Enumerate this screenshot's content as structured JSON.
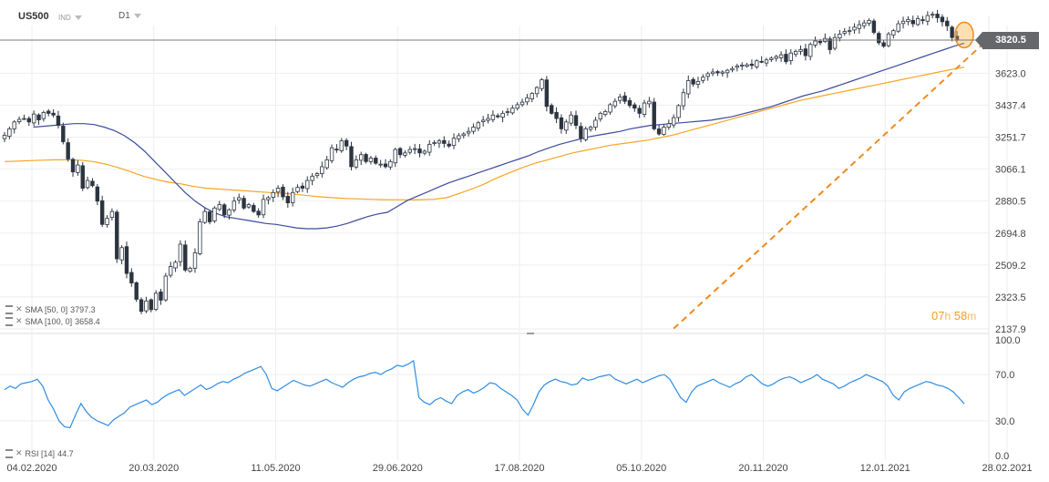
{
  "header": {
    "symbol": "US500",
    "type_badge": "IND",
    "timeframe": "D1"
  },
  "colors": {
    "candle_up": "#ffffff",
    "candle_down": "#2c3440",
    "sma50": "#3e4b9c",
    "sma100": "#f5a623",
    "trend": "#f08a1c",
    "rsi": "#2f8de4",
    "price_line": "#7a7a7a",
    "axis_text": "#444444",
    "grid": "#eeeeee"
  },
  "chart_data": [
    {
      "type": "candlestick",
      "title": "US500",
      "timeframe": "D1",
      "x_tick_labels": [
        "04.02.2020",
        "20.03.2020",
        "11.05.2020",
        "29.06.2020",
        "17.08.2020",
        "05.10.2020",
        "20.11.2020",
        "12.01.2021",
        "28.02.2021"
      ],
      "y_tick_labels": [
        "3623.0",
        "3437.4",
        "3251.7",
        "3066.1",
        "2880.5",
        "2694.8",
        "2509.2",
        "2323.5",
        "2137.9"
      ],
      "ylim": [
        2137.9,
        3900
      ],
      "current_price": "3820.5",
      "close_series": [
        3263,
        3300,
        3340,
        3355,
        3360,
        3340,
        3386,
        3352,
        3395,
        3390,
        3380,
        3320,
        3225,
        3125,
        3050,
        3090,
        2955,
        3000,
        2970,
        2880,
        2745,
        2780,
        2820,
        2545,
        2610,
        2460,
        2405,
        2310,
        2240,
        2300,
        2250,
        2345,
        2305,
        2445,
        2500,
        2525,
        2630,
        2480,
        2490,
        2580,
        2760,
        2820,
        2760,
        2840,
        2860,
        2800,
        2830,
        2880,
        2900,
        2840,
        2860,
        2820,
        2800,
        2890,
        2900,
        2930,
        2955,
        2905,
        2870,
        2930,
        2960,
        2955,
        3000,
        3025,
        3040,
        3080,
        3120,
        3190,
        3180,
        3230,
        3200,
        3080,
        3120,
        3150,
        3110,
        3130,
        3100,
        3095,
        3080,
        3110,
        3180,
        3150,
        3160,
        3180,
        3185,
        3160,
        3170,
        3210,
        3220,
        3230,
        3215,
        3200,
        3245,
        3260,
        3270,
        3285,
        3310,
        3335,
        3350,
        3360,
        3380,
        3370,
        3390,
        3400,
        3420,
        3440,
        3455,
        3480,
        3505,
        3540,
        3585,
        3430,
        3390,
        3360,
        3300,
        3340,
        3380,
        3320,
        3245,
        3300,
        3310,
        3350,
        3390,
        3400,
        3440,
        3460,
        3485,
        3460,
        3435,
        3420,
        3390,
        3450,
        3460,
        3300,
        3270,
        3310,
        3330,
        3365,
        3435,
        3510,
        3580,
        3560,
        3575,
        3600,
        3620,
        3630,
        3625,
        3630,
        3640,
        3650,
        3665,
        3670,
        3672,
        3668,
        3695,
        3690,
        3700,
        3710,
        3720,
        3730,
        3690,
        3740,
        3750,
        3760,
        3725,
        3790,
        3810,
        3800,
        3825,
        3760,
        3830,
        3850,
        3865,
        3870,
        3890,
        3905,
        3915,
        3930,
        3860,
        3800,
        3780,
        3851,
        3870,
        3910,
        3925,
        3935,
        3910,
        3940,
        3930,
        3958,
        3965,
        3945,
        3922,
        3898,
        3830,
        3820
      ],
      "series": [
        {
          "name": "SMA [50, 0]",
          "value": "3797.3",
          "values": [
            3310,
            3315,
            3320,
            3325,
            3330,
            3330,
            3325,
            3310,
            3290,
            3260,
            3220,
            3170,
            3110,
            3050,
            2990,
            2930,
            2880,
            2840,
            2810,
            2790,
            2780,
            2770,
            2760,
            2750,
            2745,
            2735,
            2725,
            2720,
            2720,
            2725,
            2735,
            2750,
            2770,
            2790,
            2805,
            2815,
            2850,
            2885,
            2910,
            2935,
            2960,
            2985,
            3005,
            3025,
            3045,
            3065,
            3085,
            3105,
            3125,
            3145,
            3170,
            3190,
            3210,
            3225,
            3240,
            3255,
            3265,
            3275,
            3285,
            3300,
            3310,
            3320,
            3325,
            3330,
            3335,
            3340,
            3345,
            3350,
            3360,
            3370,
            3385,
            3400,
            3415,
            3430,
            3450,
            3470,
            3490,
            3505,
            3520,
            3540,
            3560,
            3580,
            3600,
            3620,
            3640,
            3660,
            3680,
            3700,
            3720,
            3740,
            3760,
            3780,
            3797.3
          ]
        },
        {
          "name": "SMA [100, 0]",
          "value": "3658.4",
          "values": [
            3110,
            3112,
            3115,
            3118,
            3120,
            3120,
            3118,
            3110,
            3095,
            3075,
            3050,
            3025,
            3005,
            2990,
            2980,
            2965,
            2955,
            2950,
            2945,
            2940,
            2935,
            2930,
            2926,
            2920,
            2912,
            2905,
            2900,
            2895,
            2893,
            2891,
            2889,
            2888,
            2887,
            2889,
            2891,
            2900,
            2925,
            2950,
            2980,
            3015,
            3045,
            3075,
            3100,
            3120,
            3140,
            3160,
            3175,
            3190,
            3205,
            3215,
            3225,
            3235,
            3250,
            3265,
            3285,
            3305,
            3325,
            3345,
            3365,
            3385,
            3405,
            3425,
            3445,
            3465,
            3480,
            3495,
            3510,
            3525,
            3540,
            3555,
            3570,
            3585,
            3600,
            3615,
            3630,
            3645,
            3658.4
          ]
        },
        {
          "name": "RSI [14]",
          "value": "44.7",
          "ylim": [
            0,
            100
          ],
          "y_tick_labels": [
            "100.0",
            "70.0",
            "30.0",
            "0.0"
          ],
          "values": [
            57,
            60,
            58,
            62,
            63,
            64,
            66,
            60,
            48,
            40,
            30,
            25,
            24,
            35,
            45,
            38,
            33,
            30,
            28,
            26,
            31,
            34,
            37,
            42,
            44,
            46,
            48,
            44,
            46,
            50,
            53,
            55,
            57,
            52,
            55,
            58,
            61,
            57,
            59,
            62,
            64,
            63,
            66,
            68,
            71,
            73,
            75,
            77,
            70,
            58,
            56,
            59,
            62,
            65,
            63,
            61,
            60,
            62,
            64,
            66,
            63,
            61,
            59,
            63,
            66,
            68,
            69,
            71,
            72,
            70,
            73,
            75,
            78,
            77,
            79,
            82,
            50,
            46,
            44,
            48,
            50,
            47,
            45,
            52,
            55,
            57,
            54,
            56,
            59,
            63,
            62,
            58,
            55,
            52,
            48,
            40,
            35,
            44,
            55,
            61,
            64,
            66,
            64,
            63,
            61,
            62,
            67,
            65,
            66,
            68,
            69,
            70,
            66,
            64,
            62,
            64,
            66,
            63,
            65,
            67,
            69,
            70,
            66,
            58,
            50,
            46,
            55,
            60,
            62,
            64,
            66,
            63,
            61,
            59,
            62,
            64,
            68,
            70,
            66,
            62,
            60,
            62,
            65,
            67,
            68,
            66,
            63,
            65,
            67,
            70,
            66,
            64,
            62,
            58,
            60,
            63,
            65,
            67,
            70,
            68,
            66,
            64,
            60,
            52,
            48,
            55,
            58,
            60,
            62,
            64,
            63,
            61,
            60,
            58,
            55,
            50,
            44.7
          ]
        }
      ]
    }
  ],
  "indicator_legend": {
    "sma50_label": "SMA [50, 0]",
    "sma50_value": "3797.3",
    "sma100_label": "SMA [100, 0]",
    "sma100_value": "3658.4",
    "rsi_label": "RSI [14]",
    "rsi_value": "44.7"
  },
  "timer": {
    "hours": "07",
    "h_unit": "h",
    "minutes": "58",
    "m_unit": "m"
  }
}
